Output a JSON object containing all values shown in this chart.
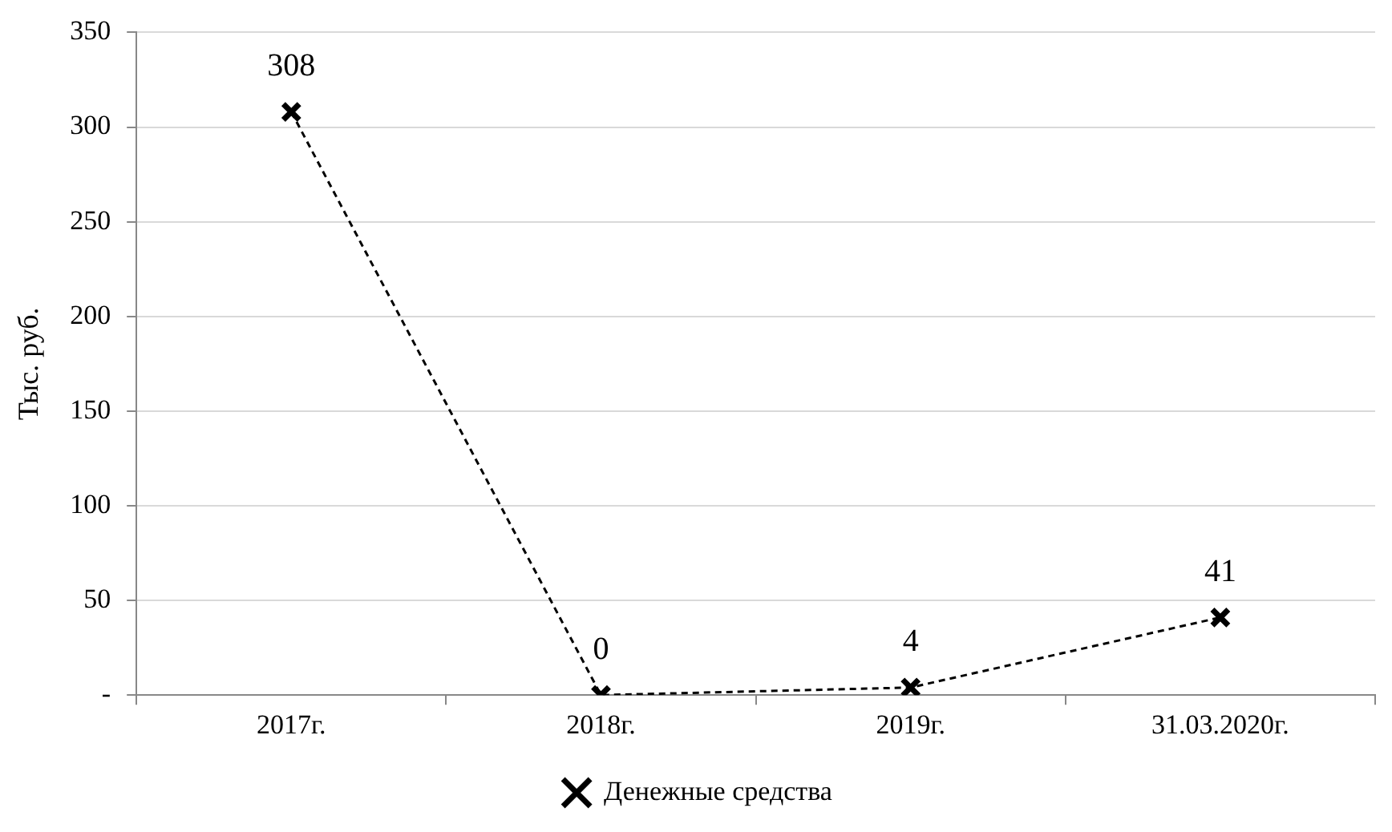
{
  "chart_data": {
    "type": "line",
    "ylabel": "Тыс. руб.",
    "categories": [
      "2017г.",
      "2018г.",
      "2019г.",
      "31.03.2020г."
    ],
    "series": [
      {
        "name": "Денежные средства",
        "color": "#000000",
        "values": [
          308,
          0,
          4,
          41
        ]
      }
    ],
    "ylim": [
      0,
      350
    ],
    "yticks": [
      {
        "value": 0,
        "label": "-"
      },
      50,
      100,
      150,
      200,
      250,
      300,
      350
    ],
    "grid": "y",
    "legend": "bottom",
    "marker": "cross",
    "line_style": "dashed",
    "data_labels": true
  }
}
